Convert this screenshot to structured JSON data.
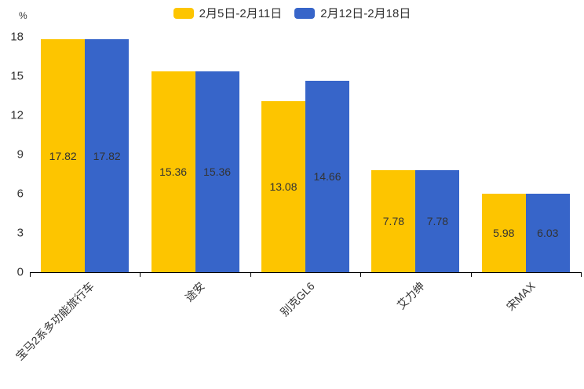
{
  "chart_data": {
    "type": "bar",
    "ylabel": "%",
    "categories": [
      "宝马2系多功能旅行车",
      "途安",
      "别克GL6",
      "艾力绅",
      "宋MAX"
    ],
    "series": [
      {
        "name": "2月5日-2月11日",
        "color": "#FDC500",
        "values": [
          17.82,
          15.36,
          13.08,
          7.78,
          5.98
        ]
      },
      {
        "name": "2月12日-2月18日",
        "color": "#3765C9",
        "values": [
          17.82,
          15.36,
          14.66,
          7.78,
          6.03
        ]
      }
    ],
    "ylim": [
      0,
      18
    ],
    "y_ticks": [
      0,
      3,
      6,
      9,
      12,
      15,
      18
    ],
    "grid": false,
    "legend_position": "top",
    "value_label_position": "inside-center"
  },
  "colors": {
    "axis": "#000000",
    "text": "#333333",
    "background": "#ffffff"
  }
}
